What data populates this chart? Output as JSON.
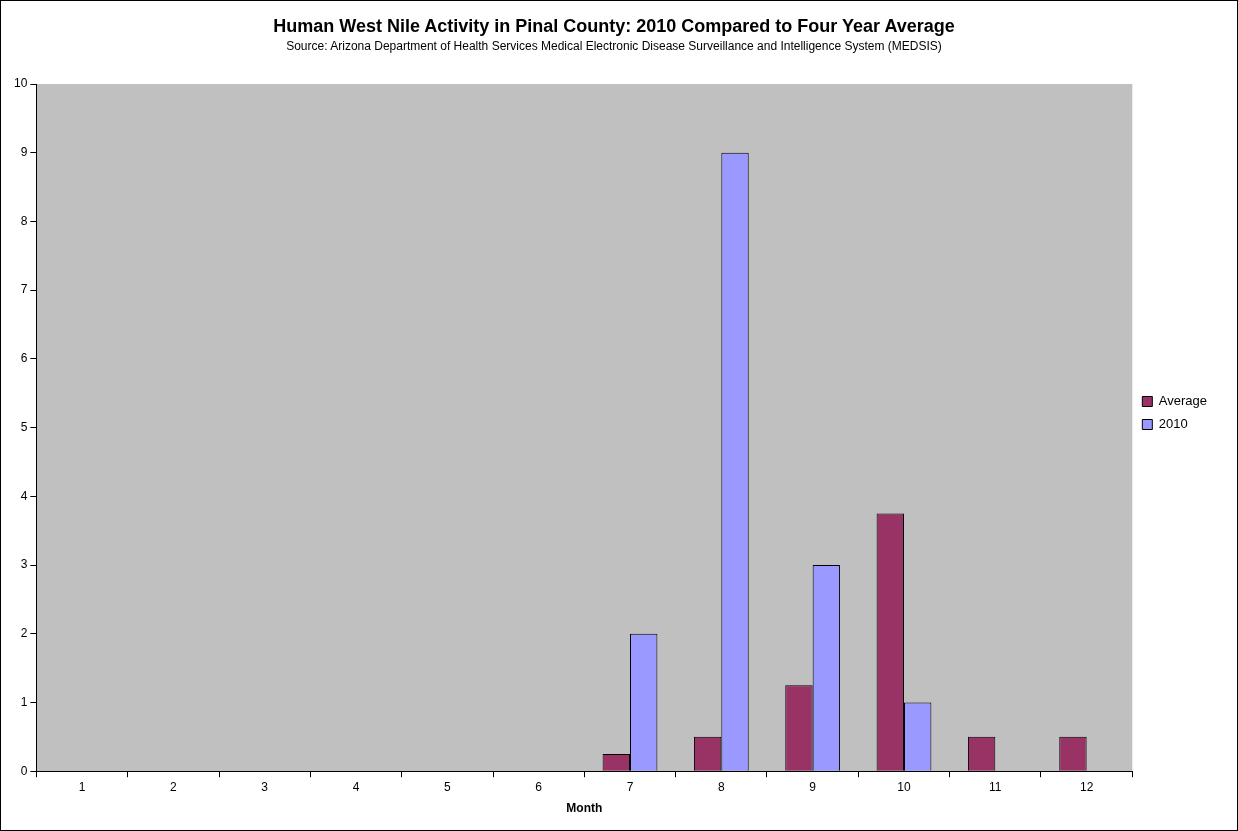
{
  "chart_data": {
    "type": "bar",
    "title": "Human West Nile Activity in Pinal County: 2010 Compared to Four Year Average",
    "subtitle": "Source: Arizona Department of Health Services Medical Electronic Disease Surveillance and Intelligence System (MEDSIS)",
    "xlabel": "Month",
    "categories": [
      "1",
      "2",
      "3",
      "4",
      "5",
      "6",
      "7",
      "8",
      "9",
      "10",
      "11",
      "12"
    ],
    "series": [
      {
        "name": "Average",
        "color": "#993366",
        "values": [
          0,
          0,
          0,
          0,
          0,
          0,
          0.25,
          0.5,
          1.25,
          3.75,
          0.5,
          0.5
        ]
      },
      {
        "name": "2010",
        "color": "#9999ff",
        "values": [
          0,
          0,
          0,
          0,
          0,
          0,
          2,
          9,
          3,
          1,
          0,
          0
        ]
      }
    ],
    "ylim": [
      0,
      10
    ],
    "yticks": [
      0,
      1,
      2,
      3,
      4,
      5,
      6,
      7,
      8,
      9,
      10
    ],
    "grid": false,
    "legend": "right"
  }
}
